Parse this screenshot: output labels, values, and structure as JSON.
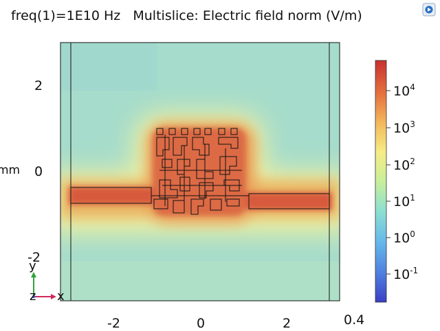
{
  "title": {
    "freq": "freq(1)=1E10 Hz",
    "plot": "Multislice: Electric field norm (V/m)"
  },
  "icons": {
    "corner": "view-toggle-icon"
  },
  "plot": {
    "y_unit": "mm",
    "y_ticks": [
      "2",
      "0",
      "-2"
    ],
    "x_ticks": [
      "-2",
      "0",
      "2"
    ],
    "x_extra_tick": "0.4",
    "triad": {
      "y": "y",
      "z": "z",
      "x": "x"
    }
  },
  "colorbar": {
    "labels": [
      {
        "base": "10",
        "exp": "4"
      },
      {
        "base": "10",
        "exp": "3"
      },
      {
        "base": "10",
        "exp": "2"
      },
      {
        "base": "10",
        "exp": "1"
      },
      {
        "base": "10",
        "exp": "0"
      },
      {
        "base": "10",
        "exp": "-1"
      }
    ]
  },
  "colors": {
    "field_high": "#d9503a",
    "field_mid": "#e8a157",
    "field_low": "#9fd7c0",
    "outline": "#111111"
  }
}
